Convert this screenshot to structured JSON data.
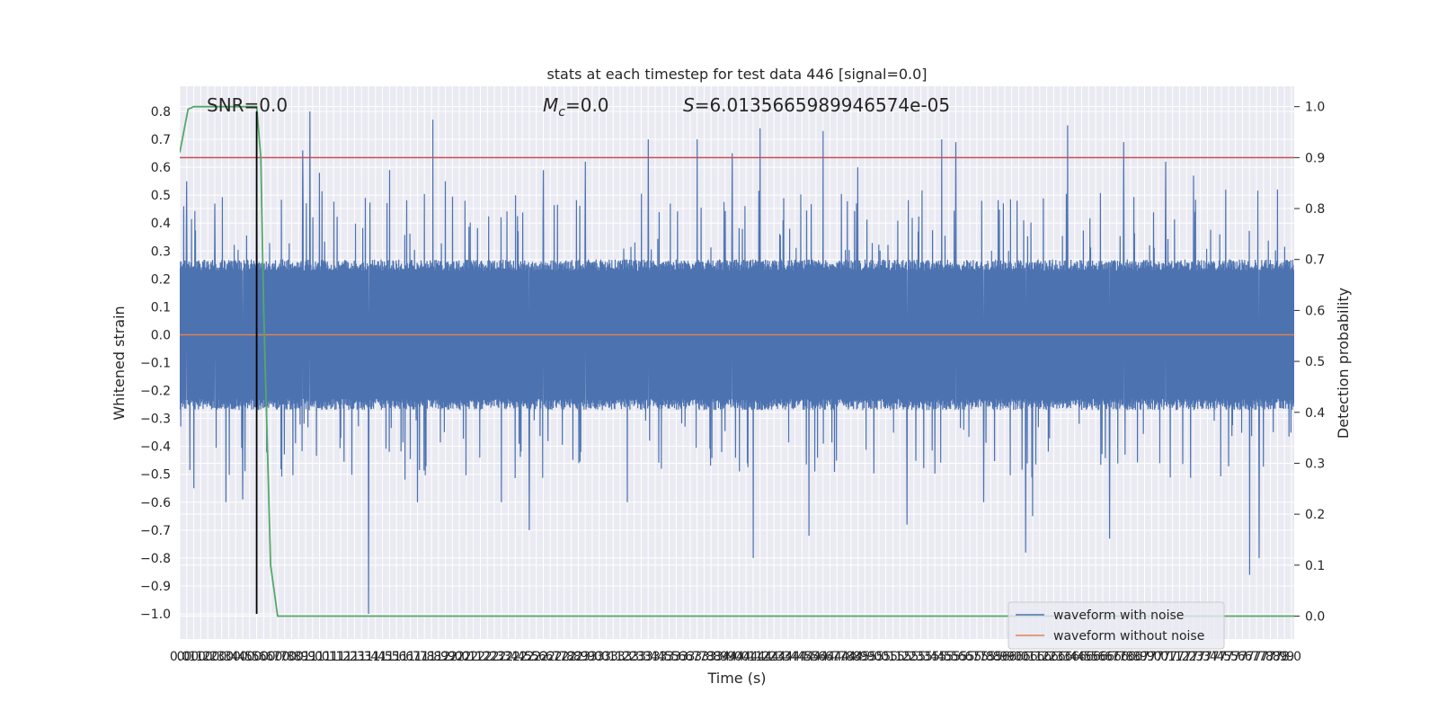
{
  "chart_data": {
    "type": "line",
    "title": "stats at each timestep for test data 446 [signal=0.0]",
    "xlabel": "Time (s)",
    "ylabel": "Whitened strain",
    "y2label": "Detection probability",
    "xlim": [
      0.0,
      7.97
    ],
    "ylim": [
      -1.09,
      0.89
    ],
    "y2lim": [
      -0.045,
      1.04
    ],
    "x_tick_step": 0.05,
    "x_tick_count": 160,
    "y_ticks": [
      -1.0,
      -0.9,
      -0.8,
      -0.7,
      -0.6,
      -0.5,
      -0.4,
      -0.3,
      -0.2,
      -0.1,
      0.0,
      0.1,
      0.2,
      0.3,
      0.4,
      0.5,
      0.6,
      0.7,
      0.8
    ],
    "y_tick_labels": [
      "−1.0",
      "−0.9",
      "−0.8",
      "−0.7",
      "−0.6",
      "−0.5",
      "−0.4",
      "−0.3",
      "−0.2",
      "−0.1",
      "0.0",
      "0.1",
      "0.2",
      "0.3",
      "0.4",
      "0.5",
      "0.6",
      "0.7",
      "0.8"
    ],
    "y2_ticks": [
      0.0,
      0.1,
      0.2,
      0.3,
      0.4,
      0.5,
      0.6,
      0.7,
      0.8,
      0.9,
      1.0
    ],
    "y2_tick_labels": [
      "0.0",
      "0.1",
      "0.2",
      "0.3",
      "0.4",
      "0.5",
      "0.6",
      "0.7",
      "0.8",
      "0.9",
      "1.0"
    ],
    "grid": true,
    "legend_position": "bottom-right",
    "annotations": {
      "snr": "SNR=0.0",
      "mc": "=0.0",
      "mc_symbol": "M",
      "mc_subscript": "c",
      "s": "=6.0135665989946574e-05",
      "s_symbol": "S"
    },
    "series": [
      {
        "name": "waveform with noise",
        "color": "#4c72b0",
        "axis": "left",
        "noise": {
          "sample_rate": 2048,
          "band_low": -0.27,
          "band_high": 0.27
        },
        "spikes": [
          {
            "x": 0.05,
            "y": 0.55
          },
          {
            "x": 0.1,
            "y": -0.55
          },
          {
            "x": 0.25,
            "y": 0.47
          },
          {
            "x": 0.33,
            "y": -0.6
          },
          {
            "x": 0.45,
            "y": -0.59
          },
          {
            "x": 0.55,
            "y": 0.57
          },
          {
            "x": 0.88,
            "y": 0.66
          },
          {
            "x": 0.93,
            "y": 0.8
          },
          {
            "x": 1.0,
            "y": 0.58
          },
          {
            "x": 1.35,
            "y": -1.0
          },
          {
            "x": 1.5,
            "y": 0.59
          },
          {
            "x": 1.7,
            "y": -0.6
          },
          {
            "x": 1.81,
            "y": 0.77
          },
          {
            "x": 1.9,
            "y": 0.55
          },
          {
            "x": 2.3,
            "y": -0.6
          },
          {
            "x": 2.5,
            "y": -0.7
          },
          {
            "x": 2.6,
            "y": 0.59
          },
          {
            "x": 2.9,
            "y": 0.62
          },
          {
            "x": 3.2,
            "y": -0.6
          },
          {
            "x": 3.35,
            "y": 0.7
          },
          {
            "x": 3.7,
            "y": 0.7
          },
          {
            "x": 3.95,
            "y": 0.65
          },
          {
            "x": 4.1,
            "y": -0.8
          },
          {
            "x": 4.15,
            "y": 0.74
          },
          {
            "x": 4.5,
            "y": -0.72
          },
          {
            "x": 4.6,
            "y": 0.73
          },
          {
            "x": 4.85,
            "y": 0.6
          },
          {
            "x": 5.2,
            "y": -0.68
          },
          {
            "x": 5.45,
            "y": 0.7
          },
          {
            "x": 5.55,
            "y": 0.69
          },
          {
            "x": 5.75,
            "y": -0.6
          },
          {
            "x": 6.05,
            "y": -0.78
          },
          {
            "x": 6.1,
            "y": -0.65
          },
          {
            "x": 6.35,
            "y": 0.75
          },
          {
            "x": 6.65,
            "y": -0.73
          },
          {
            "x": 6.75,
            "y": 0.69
          },
          {
            "x": 7.05,
            "y": 0.62
          },
          {
            "x": 7.25,
            "y": 0.57
          },
          {
            "x": 7.65,
            "y": -0.86
          },
          {
            "x": 7.72,
            "y": -0.8
          },
          {
            "x": 7.85,
            "y": 0.52
          }
        ]
      },
      {
        "name": "waveform without noise",
        "color": "#dd8452",
        "axis": "left",
        "x": [
          0.0,
          7.97
        ],
        "y": [
          0.0,
          0.0
        ]
      },
      {
        "color": "#55a868",
        "axis": "right",
        "x": [
          0.0,
          0.06,
          0.1,
          0.2,
          0.3,
          0.4,
          0.5,
          0.55,
          0.58,
          0.6,
          0.65,
          0.7,
          0.8,
          0.9,
          1.0,
          2.0,
          4.0,
          6.0,
          7.97
        ],
        "y": [
          0.91,
          0.995,
          1.0,
          1.0,
          1.0,
          1.0,
          1.0,
          1.0,
          0.9,
          0.6,
          0.1,
          0.0,
          0.0,
          0.0,
          0.0,
          0.0,
          0.0,
          0.0,
          0.0
        ]
      },
      {
        "color": "#c44e52",
        "axis": "right",
        "x": [
          0.0,
          7.97
        ],
        "y": [
          0.9,
          0.9
        ]
      },
      {
        "color": "#000000",
        "axis": "left",
        "x": [
          0.55,
          0.55
        ],
        "y": [
          -1.0,
          0.8
        ]
      }
    ]
  }
}
